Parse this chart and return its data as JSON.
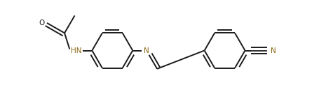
{
  "bg_color": "#ffffff",
  "line_color": "#1a1a1a",
  "text_color": "#1a1a1a",
  "n_color": "#8b6914",
  "lw": 1.4,
  "bo": 0.045,
  "r": 0.28,
  "figsize": [
    4.55,
    1.45
  ],
  "dpi": 100,
  "xlim": [
    0.1,
    4.5
  ],
  "ylim": [
    0.0,
    1.0
  ]
}
